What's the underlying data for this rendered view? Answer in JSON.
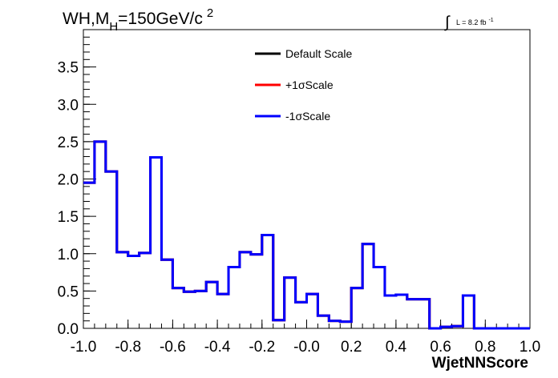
{
  "chart_data": {
    "type": "line",
    "title": {
      "main": "WH,M",
      "sub": "H",
      "rest": "=150GeV/c",
      "sup": "2"
    },
    "lumi": {
      "integral": "∫",
      "text": "L = 8.2 fb",
      "sup": "-1"
    },
    "xlabel": "WjetNNScore",
    "ylabel": "",
    "xlim": [
      -1.0,
      1.0
    ],
    "ylim": [
      0.0,
      4.0
    ],
    "x_ticks": [
      "-1.0",
      "-0.8",
      "-0.6",
      "-0.4",
      "-0.2",
      "-0.0",
      "0.2",
      "0.4",
      "0.6",
      "0.8",
      "1.0"
    ],
    "y_ticks": [
      "0.0",
      "0.5",
      "1.0",
      "1.5",
      "2.0",
      "2.5",
      "3.0",
      "3.5"
    ],
    "y_tick_values": [
      0.0,
      0.5,
      1.0,
      1.5,
      2.0,
      2.5,
      3.0,
      3.5
    ],
    "x_tick_values": [
      -1.0,
      -0.8,
      -0.6,
      -0.4,
      -0.2,
      0.0,
      0.2,
      0.4,
      0.6,
      0.8,
      1.0
    ],
    "bin_edges": [
      -1.0,
      -0.95,
      -0.9,
      -0.85,
      -0.8,
      -0.75,
      -0.7,
      -0.65,
      -0.6,
      -0.55,
      -0.5,
      -0.45,
      -0.4,
      -0.35,
      -0.3,
      -0.25,
      -0.2,
      -0.15,
      -0.1,
      -0.05,
      0.0,
      0.05,
      0.1,
      0.15,
      0.2,
      0.25,
      0.3,
      0.35,
      0.4,
      0.45,
      0.5,
      0.55,
      0.6,
      0.65,
      0.7,
      0.75,
      0.8,
      0.85,
      0.9,
      0.95,
      1.0
    ],
    "legend_position": "top-center",
    "series": [
      {
        "name": "Default Scale",
        "color": "#000000",
        "values": [
          1.95,
          2.5,
          2.1,
          1.02,
          0.97,
          1.01,
          2.29,
          0.92,
          0.54,
          0.49,
          0.5,
          0.62,
          0.46,
          0.82,
          1.02,
          0.99,
          1.25,
          0.11,
          0.68,
          0.35,
          0.46,
          0.17,
          0.1,
          0.09,
          0.54,
          1.13,
          0.82,
          0.44,
          0.45,
          0.39,
          0.39,
          0.0,
          0.02,
          0.03,
          0.44,
          0.0,
          0.0,
          0.0,
          0.0,
          0.0
        ]
      },
      {
        "name": "+1σScale",
        "color": "#ff0000",
        "values": [
          1.95,
          2.5,
          2.1,
          1.02,
          0.97,
          1.01,
          2.29,
          0.92,
          0.54,
          0.49,
          0.5,
          0.62,
          0.46,
          0.82,
          1.02,
          0.99,
          1.25,
          0.11,
          0.68,
          0.35,
          0.46,
          0.17,
          0.1,
          0.09,
          0.54,
          1.13,
          0.82,
          0.44,
          0.45,
          0.39,
          0.39,
          0.0,
          0.02,
          0.03,
          0.44,
          0.0,
          0.0,
          0.0,
          0.0,
          0.0
        ]
      },
      {
        "name": "-1σScale",
        "color": "#0000ff",
        "values": [
          1.95,
          2.5,
          2.1,
          1.02,
          0.97,
          1.01,
          2.29,
          0.92,
          0.54,
          0.49,
          0.5,
          0.62,
          0.46,
          0.82,
          1.02,
          0.99,
          1.25,
          0.11,
          0.68,
          0.35,
          0.46,
          0.17,
          0.1,
          0.09,
          0.54,
          1.13,
          0.82,
          0.44,
          0.45,
          0.39,
          0.39,
          0.0,
          0.02,
          0.03,
          0.44,
          0.0,
          0.0,
          0.0,
          0.0,
          0.0
        ]
      }
    ]
  }
}
